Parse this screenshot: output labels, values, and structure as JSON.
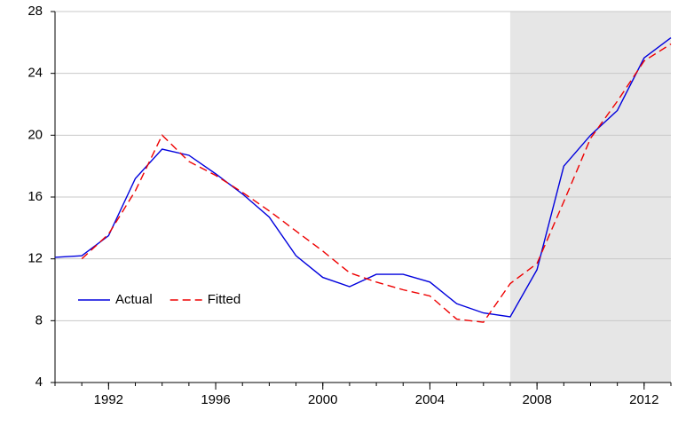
{
  "chart_data": {
    "type": "line",
    "x": [
      1990,
      1991,
      1992,
      1993,
      1994,
      1995,
      1996,
      1997,
      1998,
      1999,
      2000,
      2001,
      2002,
      2003,
      2004,
      2005,
      2006,
      2007,
      2008,
      2009,
      2010,
      2011,
      2012,
      2013
    ],
    "series": [
      {
        "name": "Actual",
        "color": "#0000dd",
        "dash": false,
        "values": [
          12.1,
          12.2,
          13.5,
          17.2,
          19.1,
          18.7,
          17.5,
          16.2,
          14.7,
          12.2,
          10.8,
          10.2,
          11.0,
          11.0,
          10.5,
          9.1,
          8.5,
          8.25,
          11.3,
          18.0,
          20.0,
          21.6,
          25.0,
          26.3
        ]
      },
      {
        "name": "Fitted",
        "color": "#ee0000",
        "dash": true,
        "values": [
          null,
          12.0,
          13.6,
          16.4,
          20.0,
          18.3,
          17.4,
          16.3,
          15.1,
          13.8,
          12.5,
          11.1,
          10.5,
          10.0,
          9.6,
          8.1,
          7.9,
          10.4,
          11.7,
          15.7,
          19.8,
          22.2,
          24.8,
          25.9
        ]
      }
    ],
    "xlim": [
      1990,
      2013
    ],
    "xticks": [
      1992,
      1996,
      2000,
      2004,
      2008,
      2012
    ],
    "ylim": [
      4,
      28
    ],
    "yticks": [
      4,
      8,
      12,
      16,
      20,
      24,
      28
    ],
    "grid": true,
    "legend": "left",
    "shaded_region": [
      2007,
      2013
    ]
  }
}
